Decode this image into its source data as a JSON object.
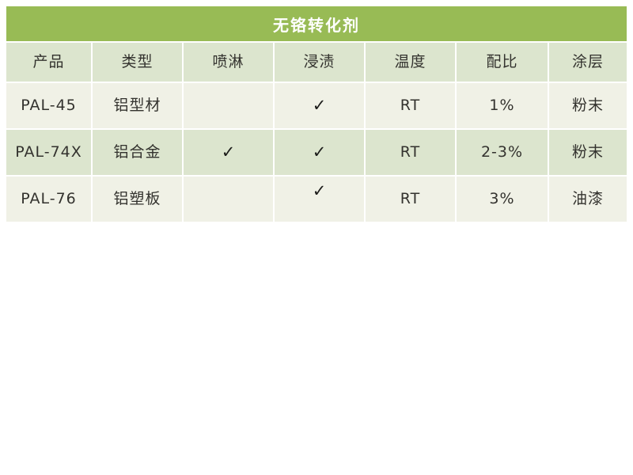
{
  "title": "无铬转化剂",
  "colors": {
    "title_bg": "#98bb55",
    "title_text": "#ffffff",
    "row_green": "#dce5ce",
    "row_cream": "#f0f1e6",
    "text_dark": "#33322e",
    "page_bg": "#ffffff"
  },
  "table": {
    "columns": [
      "产品",
      "类型",
      "喷淋",
      "浸渍",
      "温度",
      "配比",
      "涂层"
    ],
    "rows": [
      [
        "PAL-45",
        "铝型材",
        "",
        "✓",
        "RT",
        "1%",
        "粉末"
      ],
      [
        "PAL-74X",
        "铝合金",
        "✓",
        "✓",
        "RT",
        "2-3%",
        "粉末"
      ],
      [
        "PAL-76",
        "铝塑板",
        "",
        "✓",
        "RT",
        "3%",
        "油漆"
      ]
    ]
  }
}
